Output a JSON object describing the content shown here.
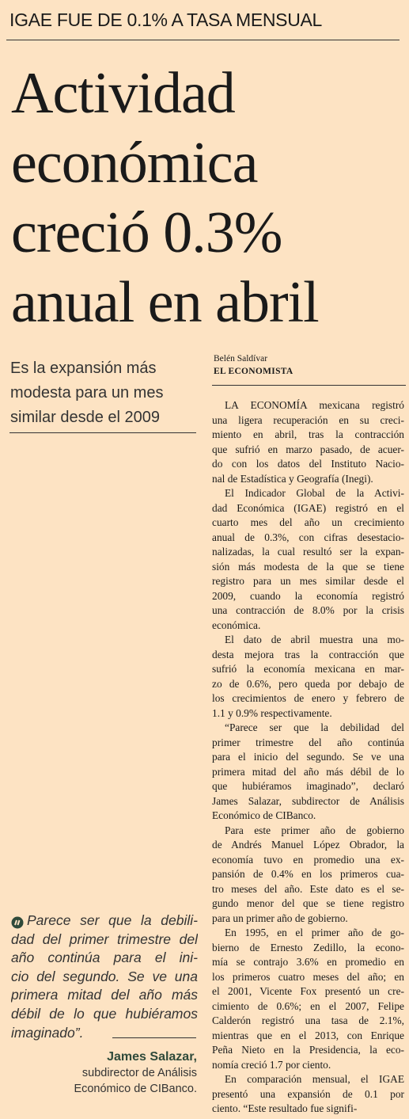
{
  "kicker": "IGAE FUE DE 0.1% A TASA MENSUAL",
  "headline": [
    "Actividad",
    "económica",
    "creció 0.3%",
    "anual en abril"
  ],
  "subhead": [
    "Es la expansión más",
    "modesta para un mes",
    "similar desde el 2009"
  ],
  "byline": {
    "author": "Belén Saldívar",
    "outlet": "EL ECONOMISTA"
  },
  "body": [
    [
      "LA ECONOMÍA mexicana registró",
      "una ligera recuperación en su creci-",
      "miento en abril, tras la contracción",
      "que sufrió en marzo pasado, de acuer-",
      "do con los datos del Instituto Nacio-",
      "nal de Estadística y Geografía (Inegi)."
    ],
    [
      "El Indicador Global de la Activi-",
      "dad Económica (IGAE) registró en el",
      "cuarto mes del año un crecimiento",
      "anual de 0.3%, con cifras desestacio-",
      "nalizadas, la cual resultó ser la expan-",
      "sión más modesta de la que se tiene",
      "registro para un mes similar desde el",
      "2009, cuando la economía registró",
      "una contracción de 8.0% por la crisis",
      "económica."
    ],
    [
      "El dato de abril muestra una mo-",
      "desta mejora tras la contracción que",
      "sufrió la economía mexicana en mar-",
      "zo de 0.6%, pero queda por debajo de",
      "los crecimientos de enero y febrero de",
      "1.1 y 0.9% respectivamente."
    ],
    [
      "“Parece ser que la debilidad del",
      "primer trimestre del año continúa",
      "para el inicio del segundo. Se ve una",
      "primera mitad del año más débil de lo",
      "que hubiéramos imaginado”, declaró",
      "James Salazar, subdirector de Análisis",
      "Económico de CIBanco."
    ],
    [
      "Para este primer año de gobierno",
      "de Andrés Manuel López Obrador, la",
      "economía tuvo en promedio una ex-",
      "pansión de 0.4% en los primeros cua-",
      "tro meses del año. Este dato es el se-",
      "gundo menor del que se tiene registro",
      "para un primer año de gobierno."
    ],
    [
      "En 1995, en el primer año de go-",
      "bierno de Ernesto Zedillo, la econo-",
      "mía se contrajo 3.6% en promedio en",
      "los primeros cuatro meses del año; en",
      "el 2001, Vicente Fox presentó un cre-",
      "cimiento de 0.6%; en el 2007, Felipe",
      "Calderón registró una tasa de 2.1%,",
      "mientras que en el 2013, con Enrique",
      "Peña Nieto en la Presidencia, la eco-",
      "nomía creció 1.7 por ciento."
    ],
    [
      "En comparación mensual, el IGAE",
      "presentó una expansión de 0.1 por",
      "ciento. “Este resultado fue signifi-"
    ]
  ],
  "pull_quote": {
    "lines": [
      "Parece ser que la debili-",
      "dad del primer trimestre del",
      "año continúa para el ini-",
      "cio del segundo. Se ve una",
      "primera mitad del año más",
      "débil de lo que hubiéramos",
      "imaginado”."
    ],
    "attribution": "James Salazar,",
    "role": [
      "subdirector de Análisis",
      "Económico de CIBanco."
    ]
  }
}
